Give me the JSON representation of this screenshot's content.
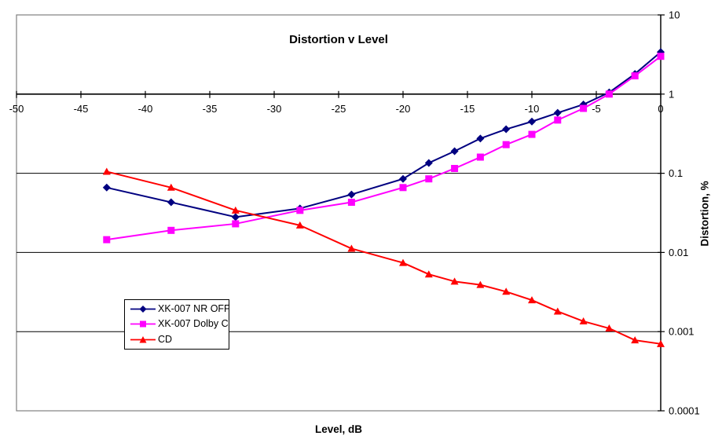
{
  "chart_data": {
    "type": "line",
    "title": "Distortion v Level",
    "xlabel": "Level, dB",
    "ylabel": "Distortion, %",
    "x_axis": {
      "min": -50,
      "max": 0,
      "tick_values": [
        -50,
        -45,
        -40,
        -35,
        -30,
        -25,
        -20,
        -15,
        -10,
        -5,
        0
      ],
      "tick_labels": [
        "-50",
        "-45",
        "-40",
        "-35",
        "-30",
        "-25",
        "-20",
        "-15",
        "-10",
        "-5",
        "0"
      ]
    },
    "y_axis": {
      "scale": "log",
      "min": 0.0001,
      "max": 10,
      "tick_values": [
        10,
        1,
        0.1,
        0.01,
        0.001,
        0.0001
      ],
      "tick_labels": [
        "10",
        "1",
        "0.1",
        "0.01",
        "0.001",
        "0.0001"
      ]
    },
    "grid": {
      "horizontal_at": [
        1,
        0.1,
        0.01,
        0.001
      ]
    },
    "category_axis_crosses_at": 1,
    "x": [
      -43,
      -38,
      -33,
      -28,
      -24,
      -20,
      -18,
      -16,
      -14,
      -12,
      -10,
      -8,
      -6,
      -4,
      -2,
      0
    ],
    "series": [
      {
        "name": "XK-007 NR OFF",
        "color": "#000080",
        "marker": "diamond",
        "values": [
          0.066,
          0.043,
          0.028,
          0.036,
          0.054,
          0.085,
          0.135,
          0.19,
          0.275,
          0.36,
          0.45,
          0.58,
          0.74,
          1.05,
          1.8,
          3.4
        ]
      },
      {
        "name": "XK-007 Dolby C",
        "color": "#FF00FF",
        "marker": "square",
        "values": [
          0.0145,
          0.019,
          0.023,
          0.034,
          0.043,
          0.066,
          0.085,
          0.115,
          0.16,
          0.23,
          0.31,
          0.47,
          0.66,
          1.0,
          1.7,
          3.0
        ]
      },
      {
        "name": "CD",
        "color": "#FF0000",
        "marker": "triangle",
        "values": [
          0.105,
          0.066,
          0.034,
          0.022,
          0.0112,
          0.0074,
          0.0053,
          0.0043,
          0.0039,
          0.0032,
          0.0025,
          0.0018,
          0.00135,
          0.0011,
          0.00078,
          0.0007
        ]
      }
    ],
    "legend_position": "inside-lower-left"
  },
  "colors": {
    "plot_border": "#808080",
    "grid": "#000000",
    "axis": "#000000",
    "text": "#000000",
    "background": "#FFFFFF"
  }
}
